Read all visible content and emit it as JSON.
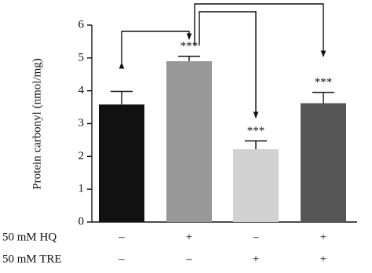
{
  "chart_data": {
    "type": "bar",
    "y_label": "Protein carbonyl (nmol/mg)",
    "categories": [
      null,
      null,
      null,
      null
    ],
    "values": [
      3.58,
      4.9,
      2.22,
      3.62
    ],
    "errors": [
      0.4,
      0.15,
      0.25,
      0.33
    ],
    "colors": [
      "#111111",
      "#999999",
      "#d2d2d2",
      "#555555"
    ],
    "significance": [
      null,
      "***",
      "***",
      "***"
    ],
    "ylim": [
      0,
      6
    ],
    "yticks": [
      0,
      1,
      2,
      3,
      4,
      5,
      6
    ]
  },
  "treatments": [
    {
      "label": "50 mM HQ",
      "signs": [
        "–",
        "+",
        "–",
        "+"
      ]
    },
    {
      "label": "50 mM TRE",
      "signs": [
        "–",
        "–",
        "+",
        "+"
      ]
    }
  ]
}
